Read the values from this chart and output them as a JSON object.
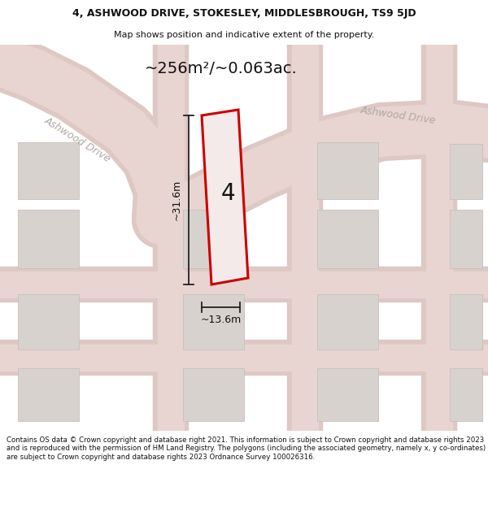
{
  "title_line1": "4, ASHWOOD DRIVE, STOKESLEY, MIDDLESBROUGH, TS9 5JD",
  "title_line2": "Map shows position and indicative extent of the property.",
  "area_label": "~256m²/~0.063ac.",
  "number_label": "4",
  "dim_height": "~31.6m",
  "dim_width": "~13.6m",
  "road_label_left": "Ashwood Drive",
  "road_label_right": "Ashwood Drive",
  "footer_text": "Contains OS data © Crown copyright and database right 2021. This information is subject to Crown copyright and database rights 2023 and is reproduced with the permission of HM Land Registry. The polygons (including the associated geometry, namely x, y co-ordinates) are subject to Crown copyright and database rights 2023 Ordnance Survey 100026316.",
  "map_bg": "#f7f4f2",
  "plot_outline_color": "#cc0000",
  "plot_fill_color": "#f5eaea",
  "road_fill_color": "#e8d4d0",
  "road_edge_color": "#ddc8c4",
  "building_fill_color": "#d8d2ce",
  "building_edge_color": "#c8c0bc",
  "dim_color": "#222222",
  "text_color": "#111111",
  "road_text_color": "#b0a8a4",
  "header_bg": "#ffffff",
  "footer_bg": "#ffffff",
  "title_fontsize": 9,
  "subtitle_fontsize": 8,
  "area_fontsize": 14,
  "number_fontsize": 20,
  "dim_fontsize": 9,
  "road_fontsize": 9,
  "footer_fontsize": 6.2
}
